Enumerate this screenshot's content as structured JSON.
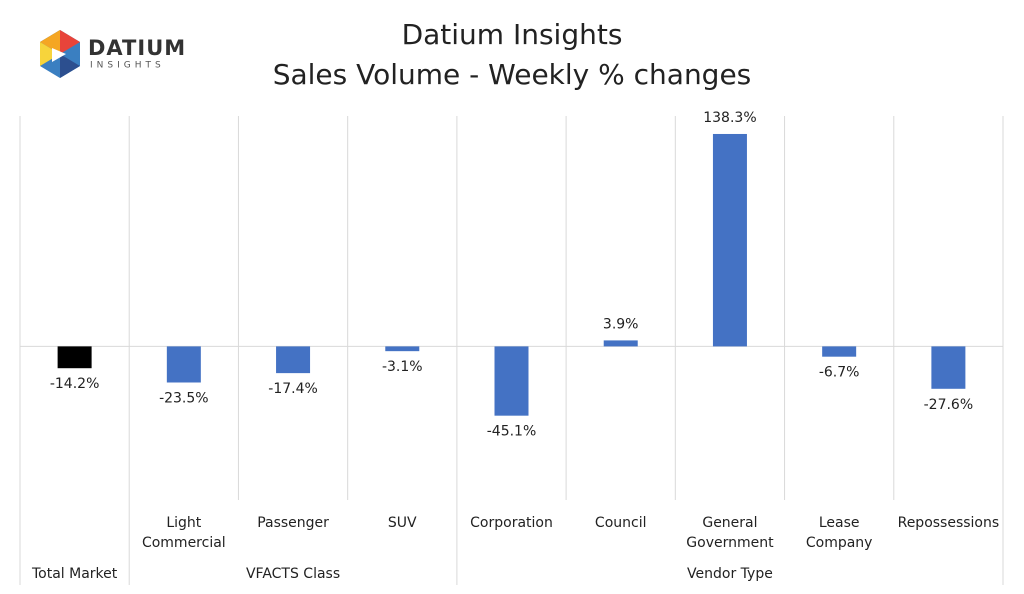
{
  "logo": {
    "name": "DATIUM",
    "tagline": "INSIGHTS"
  },
  "chart_data": {
    "type": "bar",
    "title": "Datium Insights",
    "subtitle": "Sales Volume - Weekly % changes",
    "categories": [
      null,
      "Light Commercial",
      "Passenger",
      "SUV",
      "Corporation",
      "Council",
      "General Government",
      "Lease Company",
      "Repossessions"
    ],
    "category_groups": [
      "Total Market",
      "VFACTS Class",
      "VFACTS Class",
      "VFACTS Class",
      "Vendor Type",
      "Vendor Type",
      "Vendor Type",
      "Vendor Type",
      "Vendor Type"
    ],
    "values": [
      -14.2,
      -23.5,
      -17.4,
      -3.1,
      -45.1,
      3.9,
      138.3,
      -6.7,
      -27.6
    ],
    "value_labels": [
      "-14.2%",
      "-23.5%",
      "-17.4%",
      "-3.1%",
      "-45.1%",
      "3.9%",
      "138.3%",
      "-6.7%",
      "-27.6%"
    ],
    "colors": [
      "#000000",
      "#4472c4",
      "#4472c4",
      "#4472c4",
      "#4472c4",
      "#4472c4",
      "#4472c4",
      "#4472c4",
      "#4472c4"
    ],
    "ylim": [
      -100,
      150
    ]
  }
}
